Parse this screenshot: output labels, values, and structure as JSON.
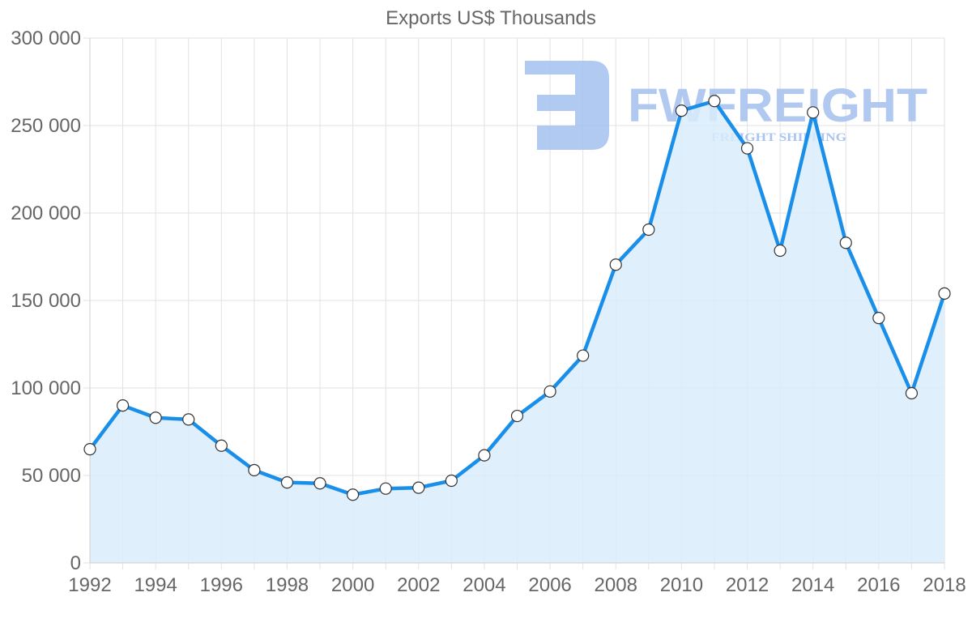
{
  "chart_data": {
    "type": "area",
    "title": "Exports US$ Thousands",
    "xlabel": "",
    "ylabel": "",
    "x": [
      1992,
      1993,
      1994,
      1995,
      1996,
      1997,
      1998,
      1999,
      2000,
      2001,
      2002,
      2003,
      2004,
      2005,
      2006,
      2007,
      2008,
      2009,
      2010,
      2011,
      2012,
      2013,
      2014,
      2015,
      2016,
      2017,
      2018
    ],
    "series": [
      {
        "name": "Exports US$ Thousands",
        "values": [
          65000,
          90000,
          83000,
          82000,
          67000,
          53000,
          46000,
          45500,
          39000,
          42500,
          43000,
          47000,
          61500,
          84000,
          98000,
          118500,
          170500,
          190500,
          258500,
          264000,
          237000,
          178500,
          257500,
          183000,
          140000,
          97000,
          154000
        ]
      }
    ],
    "ylim": [
      0,
      300000
    ],
    "yticks": [
      0,
      50000,
      100000,
      150000,
      200000,
      250000,
      300000
    ],
    "ytick_labels": [
      "0",
      "50 000",
      "100 000",
      "150 000",
      "200 000",
      "250 000",
      "300 000"
    ],
    "xticks_labels": [
      "1992",
      "1994",
      "1996",
      "1998",
      "2000",
      "2002",
      "2004",
      "2006",
      "2008",
      "2010",
      "2012",
      "2014",
      "2016",
      "2018"
    ],
    "grid": true,
    "legend": null,
    "colors": {
      "line": "#1a8fea",
      "fill": "#d9ecfc",
      "point_fill": "#ffffff",
      "point_stroke": "#333333",
      "grid": "#e2e2e2",
      "text": "#666666"
    }
  },
  "watermark": {
    "brand": "FWFREIGHT",
    "tagline": "FREIGHT SHIPPING",
    "color": "#a9c4f0"
  }
}
